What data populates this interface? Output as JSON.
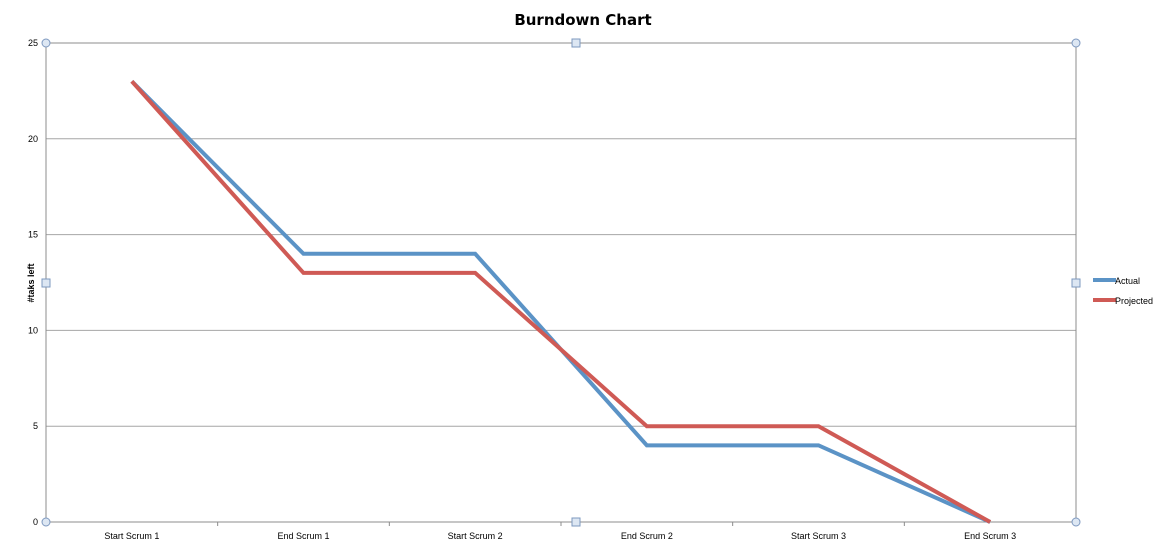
{
  "chart_data": {
    "type": "line",
    "title": "Burndown Chart",
    "xlabel": "",
    "ylabel": "#taks left",
    "categories": [
      "Start Scrum 1",
      "End Scrum 1",
      "Start Scrum 2",
      "End Scrum 2",
      "Start Scrum 3",
      "End Scrum 3"
    ],
    "ylim": [
      0,
      25
    ],
    "yticks": [
      "0",
      "5",
      "10",
      "15",
      "20",
      "25"
    ],
    "grid": true,
    "legend_position": "right",
    "series": [
      {
        "name": "Actual",
        "values": [
          23,
          14,
          14,
          4,
          4,
          0
        ],
        "color": "#5b93c6"
      },
      {
        "name": "Projected",
        "values": [
          23,
          13,
          13,
          5,
          5,
          0
        ],
        "color": "#cf5a55"
      }
    ]
  }
}
